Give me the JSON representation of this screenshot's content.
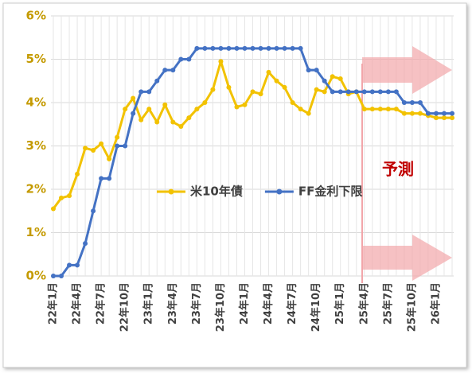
{
  "chart_data": {
    "type": "line",
    "categories": [
      "22年1月",
      null,
      null,
      "22年4月",
      null,
      null,
      "22年7月",
      null,
      null,
      "22年10月",
      null,
      null,
      "23年1月",
      null,
      null,
      "23年4月",
      null,
      null,
      "23年7月",
      null,
      null,
      "23年10月",
      null,
      null,
      "24年1月",
      null,
      null,
      "24年4月",
      null,
      null,
      "24年7月",
      null,
      null,
      "24年10月",
      null,
      null,
      "25年1月",
      null,
      null,
      "25年4月",
      null,
      null,
      "25年7月",
      null,
      null,
      "25年10月",
      null,
      null,
      "26年1月",
      null,
      null
    ],
    "series": [
      {
        "name": "米10年債",
        "color": "#f2c200",
        "values": [
          1.55,
          1.8,
          1.85,
          2.35,
          2.95,
          2.9,
          3.05,
          2.7,
          3.2,
          3.85,
          4.1,
          3.6,
          3.85,
          3.55,
          3.95,
          3.55,
          3.45,
          3.65,
          3.85,
          4.0,
          4.3,
          4.95,
          4.35,
          3.9,
          3.95,
          4.25,
          4.2,
          4.7,
          4.5,
          4.35,
          4.0,
          3.85,
          3.75,
          4.3,
          4.25,
          4.6,
          4.55,
          4.2,
          4.25,
          3.85,
          3.85,
          3.85,
          3.85,
          3.85,
          3.75,
          3.75,
          3.75,
          3.7,
          3.65,
          3.65,
          3.65
        ]
      },
      {
        "name": "FF金利下限",
        "color": "#4472c4",
        "values": [
          0,
          0,
          0.25,
          0.25,
          0.75,
          1.5,
          2.25,
          2.25,
          3.0,
          3.0,
          3.75,
          4.25,
          4.25,
          4.5,
          4.75,
          4.75,
          5.0,
          5.0,
          5.25,
          5.25,
          5.25,
          5.25,
          5.25,
          5.25,
          5.25,
          5.25,
          5.25,
          5.25,
          5.25,
          5.25,
          5.25,
          5.25,
          4.75,
          4.75,
          4.5,
          4.25,
          4.25,
          4.25,
          4.25,
          4.25,
          4.25,
          4.25,
          4.25,
          4.25,
          4.0,
          4.0,
          4.0,
          3.75,
          3.75,
          3.75,
          3.75
        ]
      }
    ],
    "ylim": [
      0,
      6
    ],
    "yticks": [
      {
        "value": 0,
        "label": "0%"
      },
      {
        "value": 1,
        "label": "1%"
      },
      {
        "value": 2,
        "label": "2%"
      },
      {
        "value": 3,
        "label": "3%"
      },
      {
        "value": 4,
        "label": "4%"
      },
      {
        "value": 5,
        "label": "5%"
      },
      {
        "value": 6,
        "label": "6%"
      }
    ],
    "grid": true,
    "legend": "center",
    "annotation": "予測"
  }
}
